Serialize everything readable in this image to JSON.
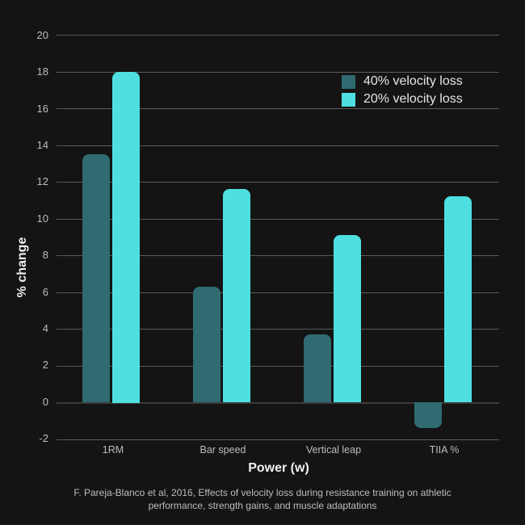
{
  "chart_data": {
    "type": "bar",
    "title": "",
    "xlabel": "Power (w)",
    "ylabel": "% change",
    "ylim": [
      -2,
      20
    ],
    "yticks": [
      20,
      18,
      16,
      14,
      12,
      10,
      8,
      6,
      4,
      2,
      0,
      -2
    ],
    "grid": true,
    "legend_position": "upper right",
    "categories": [
      "1RM",
      "Bar speed",
      "Vertical leap",
      "TIIA %"
    ],
    "series": [
      {
        "name": "40% velocity loss",
        "color": "#2f6b70",
        "values": [
          13.5,
          6.3,
          3.7,
          -1.4
        ]
      },
      {
        "name": "20% velocity loss",
        "color": "#4fdfe0",
        "values": [
          18.0,
          11.6,
          9.1,
          11.2
        ]
      }
    ],
    "annotations": [
      "F. Pareja-Blanco et al, 2016,  Effects of velocity loss during resistance training on athletic performance, strength gains, and muscle adaptations"
    ]
  },
  "axis": {
    "yticks": [
      "20",
      "18",
      "16",
      "14",
      "12",
      "10",
      "8",
      "6",
      "4",
      "2",
      "0",
      "-2"
    ],
    "xticks": [
      "1RM",
      "Bar speed",
      "Vertical leap",
      "TIIA %"
    ],
    "xlabel": "Power (w)",
    "ylabel": "% change"
  },
  "legend": {
    "items": [
      {
        "label": "40% velocity loss"
      },
      {
        "label": "20% velocity loss"
      }
    ]
  },
  "caption": "F. Pareja-Blanco et al, 2016,  Effects of velocity loss during resistance training on athletic performance, strength gains, and muscle adaptations"
}
